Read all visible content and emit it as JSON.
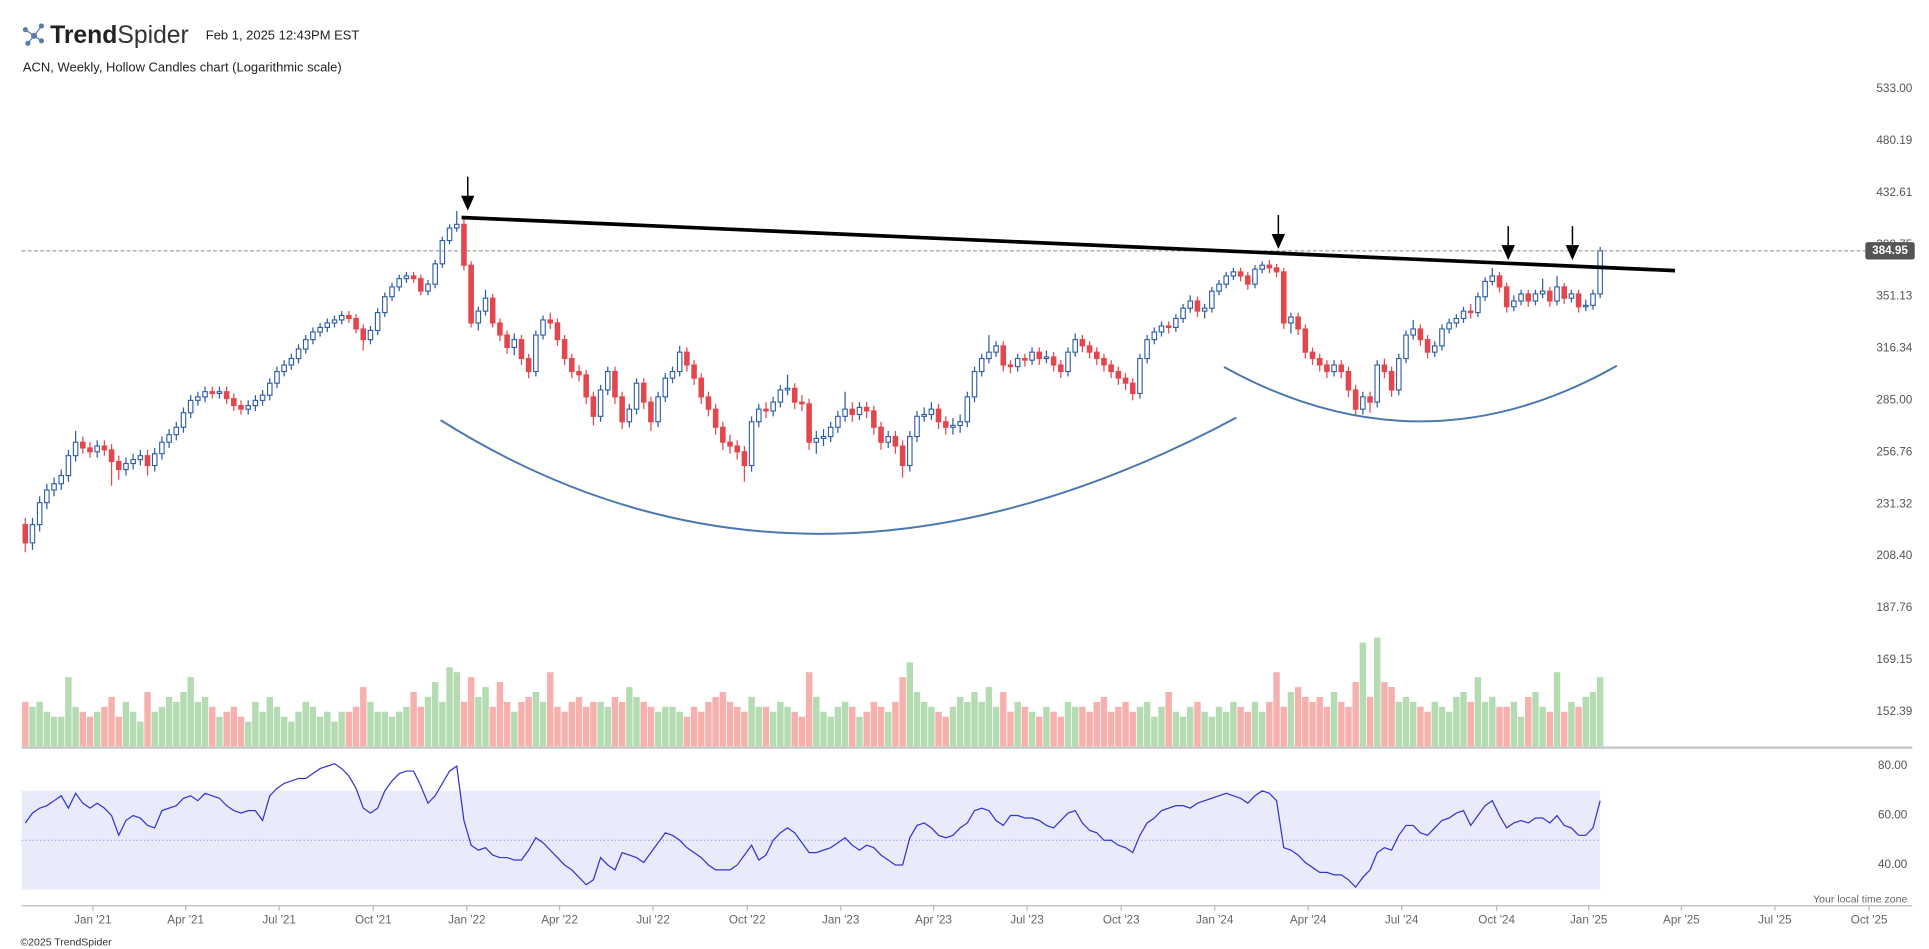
{
  "header": {
    "logo_bold": "Trend",
    "logo_light": "Spider",
    "timestamp": "Feb 1, 2025 12:43PM EST"
  },
  "chart_data": {
    "type": "candlestick",
    "title": "ACN, Weekly, Hollow Candles chart (Logarithmic scale)",
    "log_scale": true,
    "up_color": "#2d5ca6",
    "down_color": "#e2474d",
    "xlim": [
      -0.5,
      262.4
    ],
    "xticks": [
      {
        "value": 9.4,
        "label": "Jan '21"
      },
      {
        "value": 22.3,
        "label": "Apr '21"
      },
      {
        "value": 35.3,
        "label": "Jul '21"
      },
      {
        "value": 48.4,
        "label": "Oct '21"
      },
      {
        "value": 61.4,
        "label": "Jan '22"
      },
      {
        "value": 74.3,
        "label": "Apr '22"
      },
      {
        "value": 87.3,
        "label": "Jul '22"
      },
      {
        "value": 100.4,
        "label": "Oct '22"
      },
      {
        "value": 113.4,
        "label": "Jan '23"
      },
      {
        "value": 126.3,
        "label": "Apr '23"
      },
      {
        "value": 139.3,
        "label": "Jul '23"
      },
      {
        "value": 152.4,
        "label": "Oct '23"
      },
      {
        "value": 165.4,
        "label": "Jan '24"
      },
      {
        "value": 178.4,
        "label": "Apr '24"
      },
      {
        "value": 191.4,
        "label": "Jul '24"
      },
      {
        "value": 204.6,
        "label": "Oct '24"
      },
      {
        "value": 217.4,
        "label": "Jan '25"
      },
      {
        "value": 230.3,
        "label": "Apr '25"
      },
      {
        "value": 243.3,
        "label": "Jul '25"
      },
      {
        "value": 256.4,
        "label": "Oct '25"
      }
    ],
    "ylim": [
      152.39,
      533
    ],
    "yticks": [
      {
        "value": 533,
        "label": "533.00"
      },
      480.19,
      432.61,
      389.75,
      351.13,
      316.34,
      {
        "value": 285,
        "label": "285.00"
      },
      256.76,
      231.32,
      {
        "value": 208.4,
        "label": "208.40"
      },
      187.76,
      169.15,
      152.39
    ],
    "last_price": 384.95,
    "open": [
      222,
      214,
      222,
      232,
      238,
      241,
      245,
      255,
      262,
      259,
      257,
      260,
      258,
      252,
      248,
      251,
      253,
      255,
      250,
      256,
      262,
      266,
      270,
      278,
      285,
      287,
      290,
      289,
      290,
      286,
      282,
      280,
      282,
      285,
      288,
      295,
      302,
      306,
      310,
      316,
      322,
      327,
      330,
      333,
      335,
      338,
      336,
      329,
      322,
      328,
      340,
      351,
      358,
      364,
      366,
      364,
      355,
      360,
      375,
      393,
      403,
      406,
      374,
      333,
      341,
      350,
      333,
      325,
      317,
      322,
      310,
      302,
      325,
      335,
      333,
      322,
      310,
      302,
      300,
      287,
      276,
      291,
      302,
      287,
      273,
      280,
      295,
      284,
      273,
      287,
      298,
      302,
      314,
      306,
      298,
      287,
      280,
      270,
      262,
      260,
      257,
      250,
      273,
      280,
      279,
      284,
      291,
      292,
      284,
      283,
      262,
      264,
      265,
      270,
      276,
      280,
      277,
      281,
      279,
      270,
      262,
      265,
      260,
      250,
      265,
      276,
      277,
      280,
      273,
      270,
      271,
      273,
      287,
      302,
      310,
      314,
      318,
      306,
      305,
      310,
      309,
      314,
      310,
      311,
      306,
      302,
      314,
      322,
      318,
      314,
      310,
      306,
      302,
      298,
      295,
      289,
      310,
      322,
      327,
      331,
      330,
      336,
      343,
      348,
      341,
      343,
      355,
      360,
      366,
      369,
      366,
      360,
      371,
      374,
      372,
      369,
      333,
      337,
      329,
      314,
      310,
      306,
      302,
      306,
      302,
      291,
      280,
      287,
      284,
      306,
      302,
      291,
      310,
      325,
      329,
      322,
      314,
      318,
      329,
      333,
      336,
      341,
      340,
      351,
      362,
      366,
      358,
      344,
      348,
      353,
      348,
      353,
      355,
      348,
      358,
      350,
      353,
      344,
      345,
      353
    ],
    "high": [
      225,
      225,
      235,
      241,
      244,
      248,
      258,
      268,
      265,
      262,
      263,
      263,
      261,
      255,
      254,
      256,
      258,
      258,
      259,
      265,
      269,
      273,
      281,
      288,
      290,
      293,
      293,
      293,
      293,
      289,
      285,
      285,
      288,
      291,
      298,
      305,
      309,
      313,
      319,
      325,
      330,
      333,
      336,
      338,
      341,
      341,
      339,
      332,
      331,
      343,
      354,
      361,
      367,
      369,
      369,
      367,
      363,
      378,
      396,
      406,
      417,
      410,
      377,
      344,
      356,
      353,
      336,
      328,
      326,
      325,
      313,
      328,
      338,
      340,
      336,
      325,
      313,
      306,
      303,
      290,
      294,
      305,
      305,
      290,
      283,
      298,
      298,
      287,
      290,
      301,
      305,
      318,
      317,
      309,
      301,
      290,
      283,
      273,
      266,
      263,
      260,
      276,
      283,
      284,
      287,
      294,
      300,
      295,
      288,
      286,
      268,
      269,
      273,
      279,
      290,
      284,
      284,
      284,
      282,
      273,
      268,
      268,
      263,
      268,
      279,
      281,
      284,
      283,
      276,
      275,
      277,
      290,
      305,
      313,
      325,
      321,
      321,
      309,
      313,
      313,
      317,
      317,
      315,
      314,
      309,
      317,
      326,
      325,
      321,
      317,
      313,
      309,
      305,
      301,
      298,
      313,
      325,
      330,
      334,
      334,
      339,
      346,
      352,
      351,
      346,
      358,
      363,
      369,
      372,
      372,
      369,
      374,
      377,
      378,
      375,
      372,
      340,
      340,
      332,
      317,
      313,
      309,
      309,
      309,
      305,
      294,
      290,
      290,
      309,
      310,
      305,
      313,
      328,
      335,
      332,
      325,
      321,
      332,
      336,
      339,
      344,
      346,
      354,
      365,
      372,
      369,
      361,
      352,
      356,
      356,
      356,
      364,
      358,
      366,
      361,
      356,
      356,
      349,
      356,
      388
    ],
    "low": [
      210,
      211,
      219,
      229,
      235,
      238,
      242,
      252,
      256,
      254,
      254,
      255,
      240,
      243,
      245,
      248,
      250,
      245,
      247,
      253,
      259,
      263,
      267,
      275,
      282,
      284,
      286,
      286,
      283,
      279,
      277,
      277,
      279,
      282,
      285,
      292,
      299,
      303,
      307,
      313,
      319,
      324,
      327,
      330,
      332,
      333,
      326,
      315,
      319,
      325,
      337,
      348,
      355,
      361,
      361,
      352,
      352,
      357,
      372,
      390,
      400,
      370,
      330,
      328,
      338,
      330,
      321,
      313,
      312,
      306,
      298,
      299,
      322,
      329,
      318,
      306,
      298,
      296,
      283,
      271,
      273,
      288,
      283,
      269,
      270,
      277,
      280,
      268,
      270,
      284,
      295,
      299,
      302,
      294,
      283,
      276,
      266,
      258,
      256,
      253,
      242,
      247,
      270,
      275,
      276,
      281,
      288,
      280,
      279,
      258,
      256,
      260,
      262,
      267,
      273,
      273,
      274,
      275,
      266,
      258,
      259,
      256,
      244,
      247,
      262,
      273,
      274,
      269,
      266,
      266,
      267,
      270,
      284,
      299,
      307,
      311,
      302,
      301,
      302,
      305,
      306,
      306,
      307,
      302,
      298,
      299,
      311,
      314,
      310,
      306,
      302,
      298,
      294,
      291,
      285,
      286,
      307,
      319,
      324,
      326,
      327,
      333,
      340,
      337,
      336,
      340,
      352,
      357,
      363,
      362,
      356,
      357,
      368,
      368,
      365,
      329,
      326,
      325,
      310,
      306,
      302,
      298,
      299,
      298,
      287,
      276,
      277,
      278,
      281,
      298,
      287,
      288,
      307,
      322,
      318,
      310,
      311,
      315,
      326,
      330,
      333,
      336,
      337,
      348,
      359,
      354,
      340,
      341,
      345,
      344,
      345,
      350,
      344,
      345,
      346,
      347,
      340,
      341,
      342,
      350
    ],
    "close": [
      214,
      222,
      232,
      238,
      241,
      245,
      255,
      262,
      259,
      257,
      260,
      258,
      252,
      248,
      251,
      253,
      255,
      250,
      256,
      262,
      266,
      270,
      278,
      285,
      287,
      290,
      289,
      290,
      286,
      282,
      280,
      282,
      285,
      288,
      295,
      302,
      306,
      310,
      316,
      322,
      327,
      330,
      333,
      335,
      338,
      336,
      329,
      322,
      328,
      340,
      351,
      358,
      364,
      366,
      364,
      355,
      360,
      375,
      393,
      403,
      406,
      374,
      333,
      341,
      350,
      333,
      325,
      317,
      322,
      310,
      302,
      325,
      335,
      333,
      322,
      310,
      302,
      300,
      287,
      276,
      291,
      302,
      287,
      273,
      280,
      295,
      284,
      273,
      287,
      298,
      302,
      314,
      306,
      298,
      287,
      280,
      270,
      262,
      260,
      257,
      250,
      273,
      280,
      279,
      284,
      291,
      292,
      284,
      283,
      262,
      264,
      265,
      270,
      276,
      280,
      277,
      281,
      279,
      270,
      262,
      265,
      260,
      250,
      265,
      276,
      277,
      280,
      273,
      270,
      271,
      273,
      287,
      302,
      310,
      314,
      318,
      306,
      305,
      310,
      309,
      314,
      310,
      311,
      306,
      302,
      314,
      322,
      318,
      314,
      310,
      306,
      302,
      298,
      295,
      289,
      310,
      322,
      327,
      331,
      330,
      336,
      343,
      348,
      341,
      343,
      355,
      360,
      366,
      369,
      366,
      360,
      371,
      374,
      372,
      369,
      333,
      337,
      329,
      314,
      310,
      306,
      302,
      306,
      302,
      291,
      280,
      287,
      284,
      306,
      302,
      291,
      310,
      325,
      329,
      322,
      314,
      318,
      329,
      333,
      336,
      341,
      340,
      351,
      362,
      366,
      358,
      344,
      348,
      353,
      348,
      353,
      355,
      348,
      358,
      350,
      353,
      344,
      345,
      353,
      385
    ],
    "volume": {
      "up_color": "#b5dbb3",
      "down_color": "#f6b1af",
      "values": [
        9,
        8,
        9,
        7,
        6,
        6,
        14,
        8,
        7,
        6,
        7,
        8,
        10,
        6,
        9,
        7,
        5,
        11,
        7,
        8,
        10,
        9,
        11,
        14,
        9,
        10,
        8,
        6,
        7,
        8,
        6,
        5,
        9,
        7,
        10,
        8,
        6,
        5,
        7,
        9,
        8,
        6,
        7,
        5,
        7,
        7,
        8,
        12,
        9,
        7,
        7,
        6,
        7,
        8,
        11,
        8,
        10,
        13,
        9,
        16,
        15,
        9,
        14,
        10,
        12,
        8,
        13,
        9,
        7,
        9,
        10,
        11,
        9,
        15,
        8,
        7,
        9,
        10,
        8,
        9,
        9,
        8,
        10,
        9,
        12,
        10,
        9,
        8,
        7,
        8,
        8,
        7,
        6,
        8,
        7,
        9,
        10,
        11,
        9,
        8,
        7,
        10,
        8,
        8,
        7,
        9,
        8,
        7,
        6,
        15,
        10,
        7,
        6,
        8,
        9,
        8,
        6,
        7,
        9,
        8,
        7,
        9,
        14,
        17,
        11,
        9,
        8,
        7,
        6,
        8,
        10,
        9,
        11,
        9,
        12,
        8,
        11,
        7,
        9,
        8,
        7,
        6,
        8,
        7,
        6,
        9,
        8,
        8,
        7,
        9,
        10,
        7,
        8,
        9,
        7,
        8,
        9,
        6,
        8,
        11,
        7,
        6,
        8,
        9,
        7,
        6,
        8,
        7,
        9,
        8,
        7,
        9,
        7,
        9,
        15,
        8,
        11,
        12,
        10,
        9,
        10,
        8,
        11,
        9,
        8,
        13,
        21,
        10,
        22,
        13,
        12,
        9,
        10,
        9,
        8,
        7,
        9,
        8,
        7,
        10,
        11,
        9,
        14,
        9,
        10,
        8,
        8,
        9,
        6,
        10,
        11,
        8,
        7,
        15,
        7,
        9,
        8,
        10,
        11,
        14
      ]
    },
    "rsi": {
      "color": "#3434d4",
      "band_color": "#e9ebfa",
      "band": [
        30,
        70
      ],
      "midline": 50,
      "ylim": [
        25,
        84
      ],
      "yticks": [
        {
          "value": 80,
          "label": "80.00"
        },
        {
          "value": 60,
          "label": "60.00"
        },
        {
          "value": 40,
          "label": "40.00"
        }
      ],
      "values": [
        57,
        61,
        63,
        64,
        66,
        68,
        63,
        69,
        65,
        63,
        65,
        63,
        60,
        52,
        58,
        60,
        59,
        56,
        55,
        62,
        63,
        64,
        67,
        68,
        66,
        69,
        68,
        67,
        64,
        62,
        61,
        62,
        62,
        58,
        68,
        71,
        73,
        74,
        75,
        75,
        77,
        79,
        80,
        81,
        79,
        76,
        71,
        63,
        61,
        63,
        70,
        74,
        77,
        78,
        78,
        72,
        65,
        68,
        73,
        78,
        80,
        58,
        48,
        46,
        47,
        44,
        43,
        43,
        42,
        42,
        46,
        51,
        49,
        46,
        43,
        40,
        38,
        35,
        32,
        34,
        43,
        40,
        38,
        45,
        44,
        43,
        41,
        45,
        49,
        53,
        52,
        50,
        47,
        45,
        43,
        40,
        38,
        38,
        38,
        40,
        44,
        48,
        42,
        44,
        50,
        53,
        55,
        53,
        49,
        45,
        45,
        46,
        47,
        49,
        51,
        48,
        46,
        48,
        47,
        44,
        42,
        40,
        40,
        51,
        56,
        57,
        55,
        52,
        51,
        52,
        55,
        57,
        62,
        63,
        62,
        58,
        56,
        60,
        60,
        59,
        59,
        58,
        56,
        55,
        58,
        61,
        62,
        57,
        54,
        53,
        50,
        50,
        48,
        47,
        45,
        52,
        57,
        59,
        62,
        63,
        64,
        64,
        63,
        65,
        66,
        67,
        68,
        69,
        68,
        67,
        65,
        68,
        70,
        69,
        66,
        47,
        46,
        44,
        41,
        39,
        37,
        37,
        36,
        36,
        34,
        31,
        35,
        38,
        45,
        47,
        46,
        52,
        56,
        56,
        53,
        52,
        55,
        58,
        59,
        61,
        62,
        56,
        60,
        64,
        66,
        60,
        55,
        57,
        58,
        57,
        59,
        59,
        57,
        60,
        56,
        55,
        52,
        52,
        55,
        66
      ]
    }
  },
  "footer": {
    "timezone": "Your local time zone",
    "copyright": "©2025 TrendSpider"
  }
}
